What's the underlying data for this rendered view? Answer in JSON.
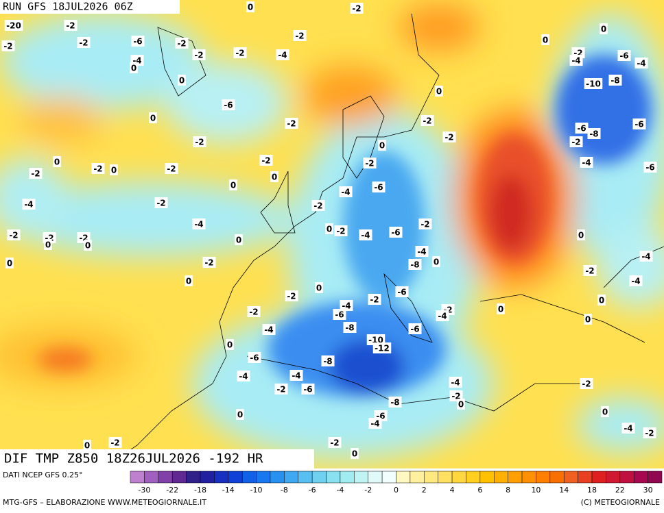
{
  "header": {
    "run": "RUN GFS 18JUL2026 06Z"
  },
  "map_title": "DIF TMP Z850 18Z26JUL2026 -192 HR",
  "contour_labels": [
    -20,
    -2,
    -2,
    -2,
    -6,
    -4,
    0,
    -2,
    -2,
    -2,
    -4,
    0,
    -2,
    -2,
    0,
    0,
    -6,
    -2,
    -2,
    0,
    -2,
    0,
    -2,
    -2,
    0,
    -2,
    0,
    -4,
    -2,
    -4,
    -2,
    -2,
    0,
    -2,
    0,
    0,
    0,
    -2,
    0,
    -2,
    -4,
    -6,
    -2,
    0,
    0,
    -2,
    -4,
    -6,
    -2,
    -4,
    -8,
    0,
    0,
    -2,
    -2,
    0,
    0,
    -2,
    -6,
    -4,
    -4,
    -10,
    -8,
    -6,
    -8,
    -6,
    -2,
    -4,
    -6,
    0,
    -4,
    -2,
    -4,
    0,
    0,
    0,
    -2,
    -4,
    -6,
    -2,
    -4,
    -6,
    -2,
    0,
    -2,
    -4,
    -8,
    -6,
    0,
    -6,
    -10,
    -12,
    -8,
    -4,
    -4,
    -2,
    -6,
    -4,
    -2,
    0,
    -8,
    -6,
    -4,
    -2,
    0,
    0,
    -4,
    -2,
    -2,
    0,
    -2,
    0
  ],
  "colorbar": {
    "source": "DATI NCEP GFS 0.25°",
    "colors": [
      "#c080d0",
      "#a060c0",
      "#8040a8",
      "#602890",
      "#30208a",
      "#2020a0",
      "#1830c0",
      "#1040d8",
      "#1060e8",
      "#1878f0",
      "#2890f0",
      "#40a8f0",
      "#58c0f0",
      "#70d0f0",
      "#88e0f0",
      "#a0ecf0",
      "#c0f4f4",
      "#e0fafa",
      "#f2fdfd",
      "#fff8c0",
      "#fff0a0",
      "#ffe880",
      "#ffe060",
      "#ffd840",
      "#ffd020",
      "#ffc000",
      "#ffb000",
      "#ffa000",
      "#ff9000",
      "#ff8000",
      "#f87000",
      "#f06020",
      "#e84020",
      "#e02020",
      "#d01830",
      "#c01040",
      "#a80850",
      "#900850"
    ],
    "ticks": [
      -30,
      -22,
      -18,
      -14,
      -10,
      -8,
      -6,
      -4,
      -2,
      0,
      2,
      4,
      6,
      8,
      10,
      14,
      18,
      22,
      30
    ]
  },
  "footer": {
    "left": "MTG-GFS – ELABORAZIONE WWW.METEOGIORNALE.IT",
    "right": "(C) METEOGIORNALE"
  }
}
